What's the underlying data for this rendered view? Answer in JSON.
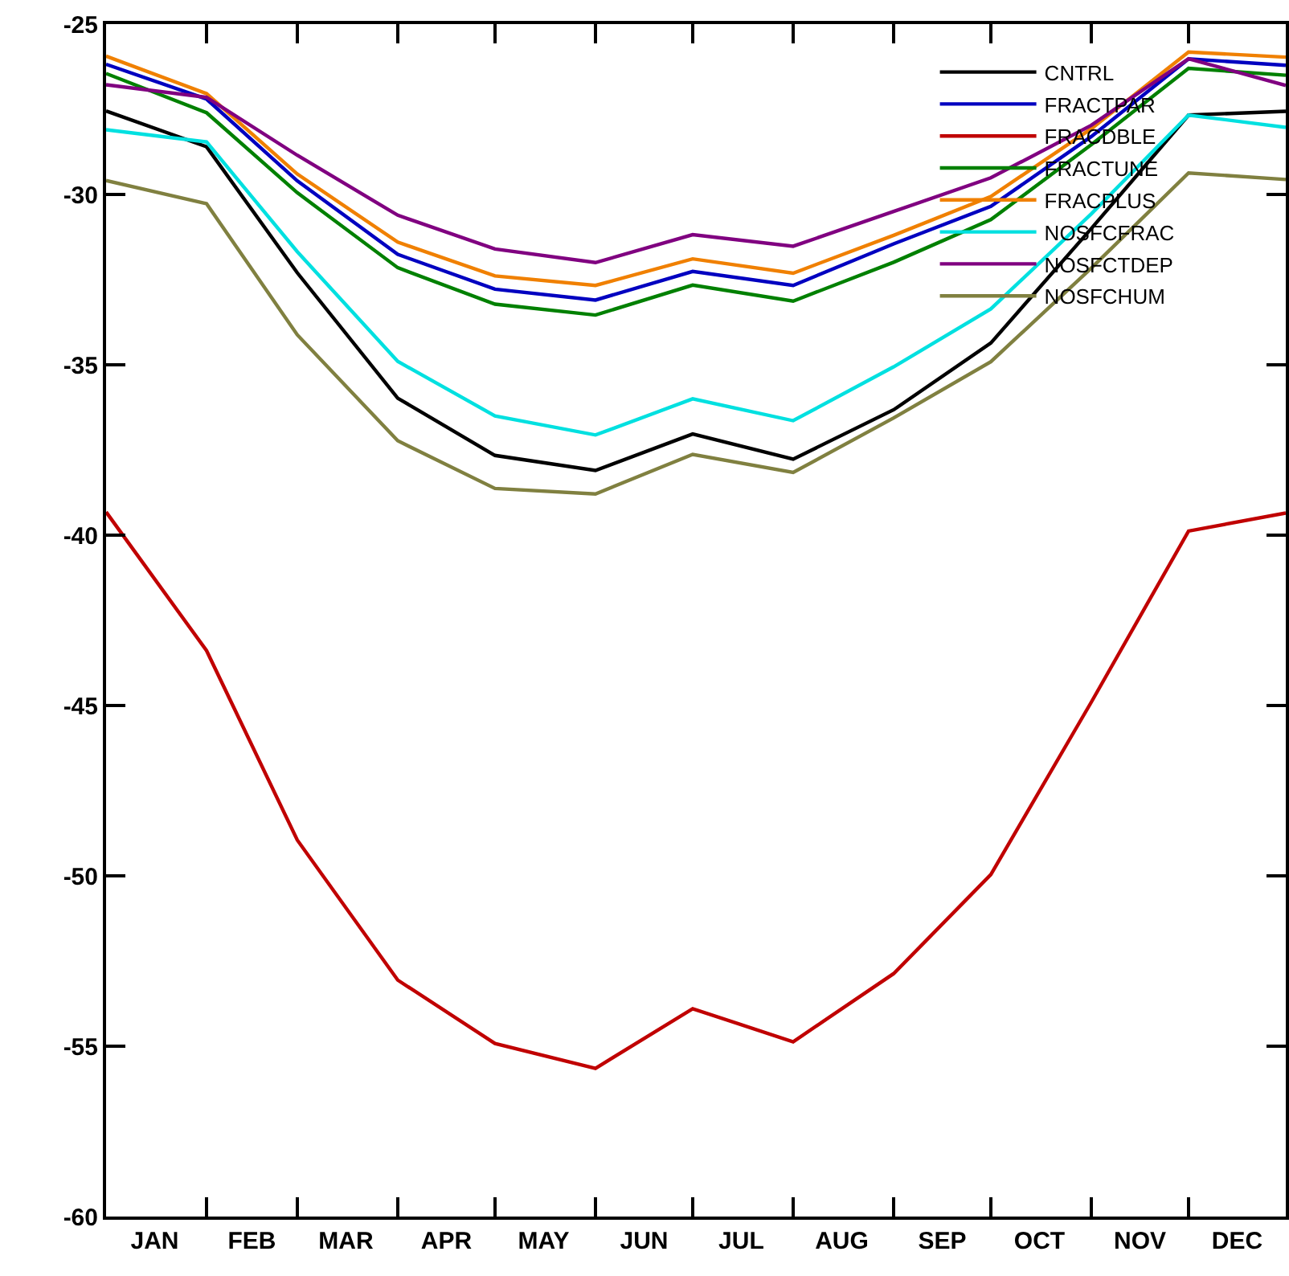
{
  "chart_data": {
    "type": "line",
    "x": [
      "--01-01",
      "--02-01",
      "--03-01",
      "--04-01",
      "--05-01",
      "--06-01",
      "--07-01",
      "--08-01",
      "--09-01",
      "--10-01",
      "--11-01",
      "--12-01",
      "--12-31"
    ],
    "xlim": [
      "--01-01",
      "--12-31"
    ],
    "xticks": [
      {
        "value": "--01-16",
        "label": "JAN"
      },
      {
        "value": "--02-15",
        "label": "FEB"
      },
      {
        "value": "--03-16",
        "label": "MAR"
      },
      {
        "value": "--04-16",
        "label": "APR"
      },
      {
        "value": "--05-16",
        "label": "MAY"
      },
      {
        "value": "--06-16",
        "label": "JUN"
      },
      {
        "value": "--07-16",
        "label": "JUL"
      },
      {
        "value": "--08-16",
        "label": "AUG"
      },
      {
        "value": "--09-16",
        "label": "SEP"
      },
      {
        "value": "--10-16",
        "label": "OCT"
      },
      {
        "value": "--11-16",
        "label": "NOV"
      },
      {
        "value": "--12-16",
        "label": "DEC"
      },
      {
        "value": "--02-01",
        "label": null
      },
      {
        "value": "--03-01",
        "label": null
      },
      {
        "value": "--04-01",
        "label": null
      },
      {
        "value": "--05-01",
        "label": null
      },
      {
        "value": "--06-01",
        "label": null
      },
      {
        "value": "--07-01",
        "label": null
      },
      {
        "value": "--08-01",
        "label": null
      },
      {
        "value": "--09-01",
        "label": null
      },
      {
        "value": "--10-01",
        "label": null
      },
      {
        "value": "--11-01",
        "label": null
      },
      {
        "value": "--12-01",
        "label": null
      }
    ],
    "ylim": [
      -60,
      -25
    ],
    "yticks": [
      -60,
      -55,
      -50,
      -45,
      -40,
      -35,
      -30,
      -25
    ],
    "grid": false,
    "legend": "top right",
    "marker": "none",
    "line_style": "solid",
    "series": [
      {
        "name": "CNTRL",
        "color": "#000000",
        "values": [
          -27.55,
          -28.6,
          -32.3,
          -35.98,
          -37.66,
          -38.1,
          -37.03,
          -37.77,
          -36.32,
          -34.36,
          -31.0,
          -27.67,
          -27.56
        ]
      },
      {
        "name": "FRACTPAR",
        "color": "#0000c0",
        "values": [
          -26.18,
          -27.2,
          -29.6,
          -31.76,
          -32.78,
          -33.1,
          -32.26,
          -32.67,
          -31.45,
          -30.35,
          -28.3,
          -26.02,
          -26.21
        ]
      },
      {
        "name": "FRACDBLE",
        "color": "#c00000",
        "values": [
          -39.32,
          -43.39,
          -48.95,
          -53.06,
          -54.92,
          -55.65,
          -53.9,
          -54.87,
          -52.87,
          -49.96,
          -44.9,
          -39.88,
          -39.35
        ]
      },
      {
        "name": "FRACTUNE",
        "color": "#008000",
        "values": [
          -26.45,
          -27.6,
          -29.95,
          -32.15,
          -33.22,
          -33.54,
          -32.66,
          -33.13,
          -31.99,
          -30.74,
          -28.54,
          -26.3,
          -26.5
        ]
      },
      {
        "name": "FRACPLUS",
        "color": "#f08000",
        "values": [
          -25.94,
          -27.04,
          -29.4,
          -31.4,
          -32.39,
          -32.67,
          -31.89,
          -32.31,
          -31.2,
          -30.06,
          -28.07,
          -25.82,
          -25.97
        ]
      },
      {
        "name": "NOSFCFRAC",
        "color": "#00e0e0",
        "values": [
          -28.1,
          -28.46,
          -31.68,
          -34.9,
          -36.5,
          -37.06,
          -36.0,
          -36.64,
          -35.06,
          -33.36,
          -30.57,
          -27.67,
          -28.03
        ]
      },
      {
        "name": "NOSFCTDEP",
        "color": "#800080",
        "values": [
          -26.78,
          -27.15,
          -28.85,
          -30.61,
          -31.6,
          -32.0,
          -31.18,
          -31.52,
          -30.5,
          -29.51,
          -27.97,
          -26.02,
          -26.8
        ]
      },
      {
        "name": "NOSFCHUM",
        "color": "#808040",
        "values": [
          -29.59,
          -30.27,
          -34.12,
          -37.23,
          -38.63,
          -38.79,
          -37.63,
          -38.16,
          -36.56,
          -34.91,
          -32.16,
          -29.37,
          -29.56
        ]
      }
    ]
  }
}
